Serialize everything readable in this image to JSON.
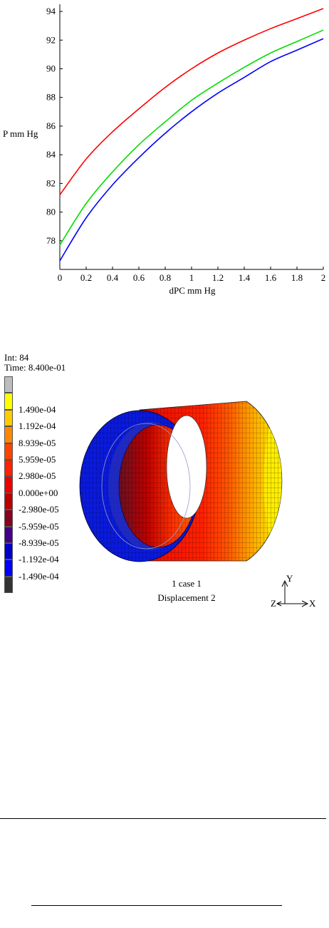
{
  "chart_data": {
    "type": "line",
    "title": "",
    "xlabel": "dPC mm Hg",
    "ylabel": "P mm Hg",
    "xlim": [
      0,
      2
    ],
    "ylim": [
      76,
      94.5
    ],
    "x_ticks": [
      "0",
      "0.2",
      "0.4",
      "0.6",
      "0.8",
      "1",
      "1.2",
      "1.4",
      "1.6",
      "1.8",
      "2"
    ],
    "y_ticks": [
      "78",
      "80",
      "82",
      "84",
      "86",
      "88",
      "90",
      "92",
      "94"
    ],
    "grid": false,
    "legend": "none",
    "x": [
      0,
      0.2,
      0.4,
      0.6,
      0.8,
      1.0,
      1.2,
      1.4,
      1.6,
      1.8,
      2.0
    ],
    "series": [
      {
        "color": "#ff0000",
        "values": [
          81.2,
          83.7,
          85.6,
          87.2,
          88.7,
          90.0,
          91.1,
          92.0,
          92.8,
          93.5,
          94.2
        ]
      },
      {
        "color": "#00dd00",
        "values": [
          77.7,
          80.6,
          82.8,
          84.7,
          86.3,
          87.8,
          89.0,
          90.1,
          91.1,
          91.9,
          92.7
        ]
      },
      {
        "color": "#0000ff",
        "values": [
          76.6,
          79.6,
          81.9,
          83.8,
          85.5,
          87.0,
          88.3,
          89.4,
          90.5,
          91.3,
          92.1
        ]
      }
    ]
  },
  "fem": {
    "int_label": "Int: 84",
    "time_label": "Time: 8.400e-01",
    "legend": [
      {
        "label": "",
        "color": "#bdbdbd"
      },
      {
        "label": "1.490e-04",
        "color": "#ffff00"
      },
      {
        "label": "1.192e-04",
        "color": "#ffcc00"
      },
      {
        "label": "8.939e-05",
        "color": "#ff8800"
      },
      {
        "label": "5.959e-05",
        "color": "#ff4400"
      },
      {
        "label": "2.980e-05",
        "color": "#ff2200"
      },
      {
        "label": "0.000e+00",
        "color": "#ee0000"
      },
      {
        "label": "-2.980e-05",
        "color": "#bb0000"
      },
      {
        "label": "-5.959e-05",
        "color": "#880022"
      },
      {
        "label": "-8.939e-05",
        "color": "#440088"
      },
      {
        "label": "-1.192e-04",
        "color": "#0000cc"
      },
      {
        "label": "-1.490e-04",
        "color": "#0000ff"
      },
      {
        "label": "",
        "color": "#333333"
      }
    ],
    "caption_1": "1 case 1",
    "caption_2": "Displacement 2",
    "axis_y": "Y",
    "axis_x": "X",
    "axis_z": "Z"
  }
}
